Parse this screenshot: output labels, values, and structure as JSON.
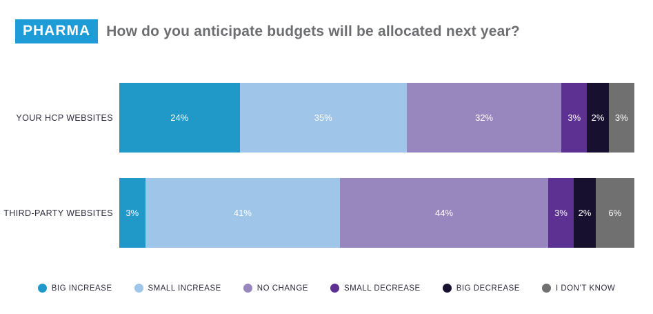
{
  "header": {
    "badge": "PHARMA",
    "title": "How do you anticipate budgets will be allocated next year?",
    "badge_color": "#1e9cd8",
    "title_color": "#6d6e71"
  },
  "chart_data": {
    "type": "bar",
    "orientation": "horizontal",
    "stacked": true,
    "grid": false,
    "legend_position": "bottom",
    "value_suffix": "%",
    "categories": [
      "YOUR HCP WEBSITES",
      "THIRD-PARTY WEBSITES"
    ],
    "series": [
      {
        "name": "BIG INCREASE",
        "color": "#2098c8",
        "values": [
          24,
          3
        ]
      },
      {
        "name": "SMALL INCREASE",
        "color": "#9fc6e8",
        "values": [
          35,
          41
        ]
      },
      {
        "name": "NO CHANGE",
        "color": "#9886be",
        "values": [
          32,
          44
        ]
      },
      {
        "name": "SMALL DECREASE",
        "color": "#5c3191",
        "values": [
          3,
          3
        ]
      },
      {
        "name": "BIG DECREASE",
        "color": "#18102f",
        "values": [
          2,
          2
        ]
      },
      {
        "name": "I DON’T KNOW",
        "color": "#707070",
        "values": [
          3,
          6
        ]
      }
    ]
  }
}
